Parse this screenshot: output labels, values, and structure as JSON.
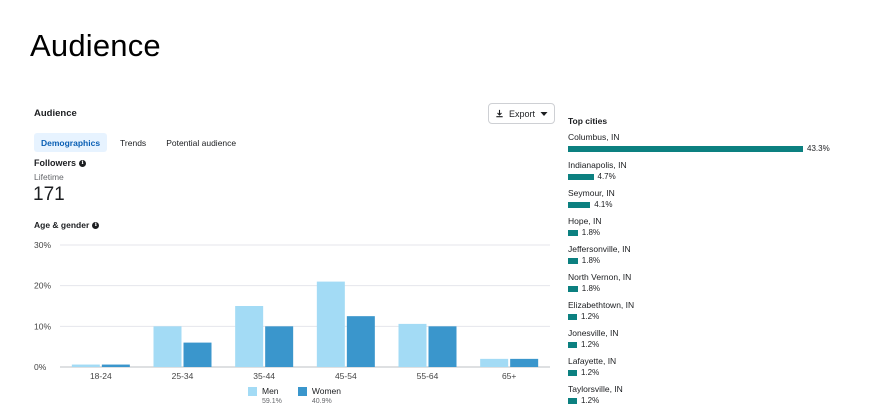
{
  "slide_title": "Audience",
  "card_title": "Audience",
  "export_label": "Export",
  "tabs": [
    "Demographics",
    "Trends",
    "Potential audience"
  ],
  "followers": {
    "label": "Followers",
    "period": "Lifetime",
    "count": "171"
  },
  "age_gender_label": "Age & gender",
  "colors": {
    "men": "#a3dbf5",
    "women": "#3a96cc",
    "city_bar": "#0c8080",
    "active_tab_bg": "#e7f3ff"
  },
  "chart_data": {
    "type": "bar",
    "categories": [
      "18-24",
      "25-34",
      "35-44",
      "45-54",
      "55-64",
      "65+"
    ],
    "series": [
      {
        "name": "Men",
        "values": [
          0.6,
          10,
          15,
          21,
          10.6,
          2
        ]
      },
      {
        "name": "Women",
        "values": [
          0.6,
          6,
          10,
          12.5,
          10,
          2
        ]
      }
    ],
    "ylim": [
      0,
      30
    ],
    "yticks": [
      "0%",
      "10%",
      "20%",
      "30%"
    ],
    "grid": true,
    "legend": "bottom"
  },
  "legend": [
    {
      "name": "Men",
      "pct": "59.1%"
    },
    {
      "name": "Women",
      "pct": "40.9%"
    }
  ],
  "top_cities": {
    "title": "Top cities",
    "items": [
      {
        "name": "Columbus, IN",
        "pct": "43.3%",
        "value": 43.3
      },
      {
        "name": "Indianapolis, IN",
        "pct": "4.7%",
        "value": 4.7
      },
      {
        "name": "Seymour, IN",
        "pct": "4.1%",
        "value": 4.1
      },
      {
        "name": "Hope, IN",
        "pct": "1.8%",
        "value": 1.8
      },
      {
        "name": "Jeffersonville, IN",
        "pct": "1.8%",
        "value": 1.8
      },
      {
        "name": "North Vernon, IN",
        "pct": "1.8%",
        "value": 1.8
      },
      {
        "name": "Elizabethtown, IN",
        "pct": "1.2%",
        "value": 1.2
      },
      {
        "name": "Jonesville, IN",
        "pct": "1.2%",
        "value": 1.2
      },
      {
        "name": "Lafayette, IN",
        "pct": "1.2%",
        "value": 1.2
      },
      {
        "name": "Taylorsville, IN",
        "pct": "1.2%",
        "value": 1.2
      }
    ]
  }
}
